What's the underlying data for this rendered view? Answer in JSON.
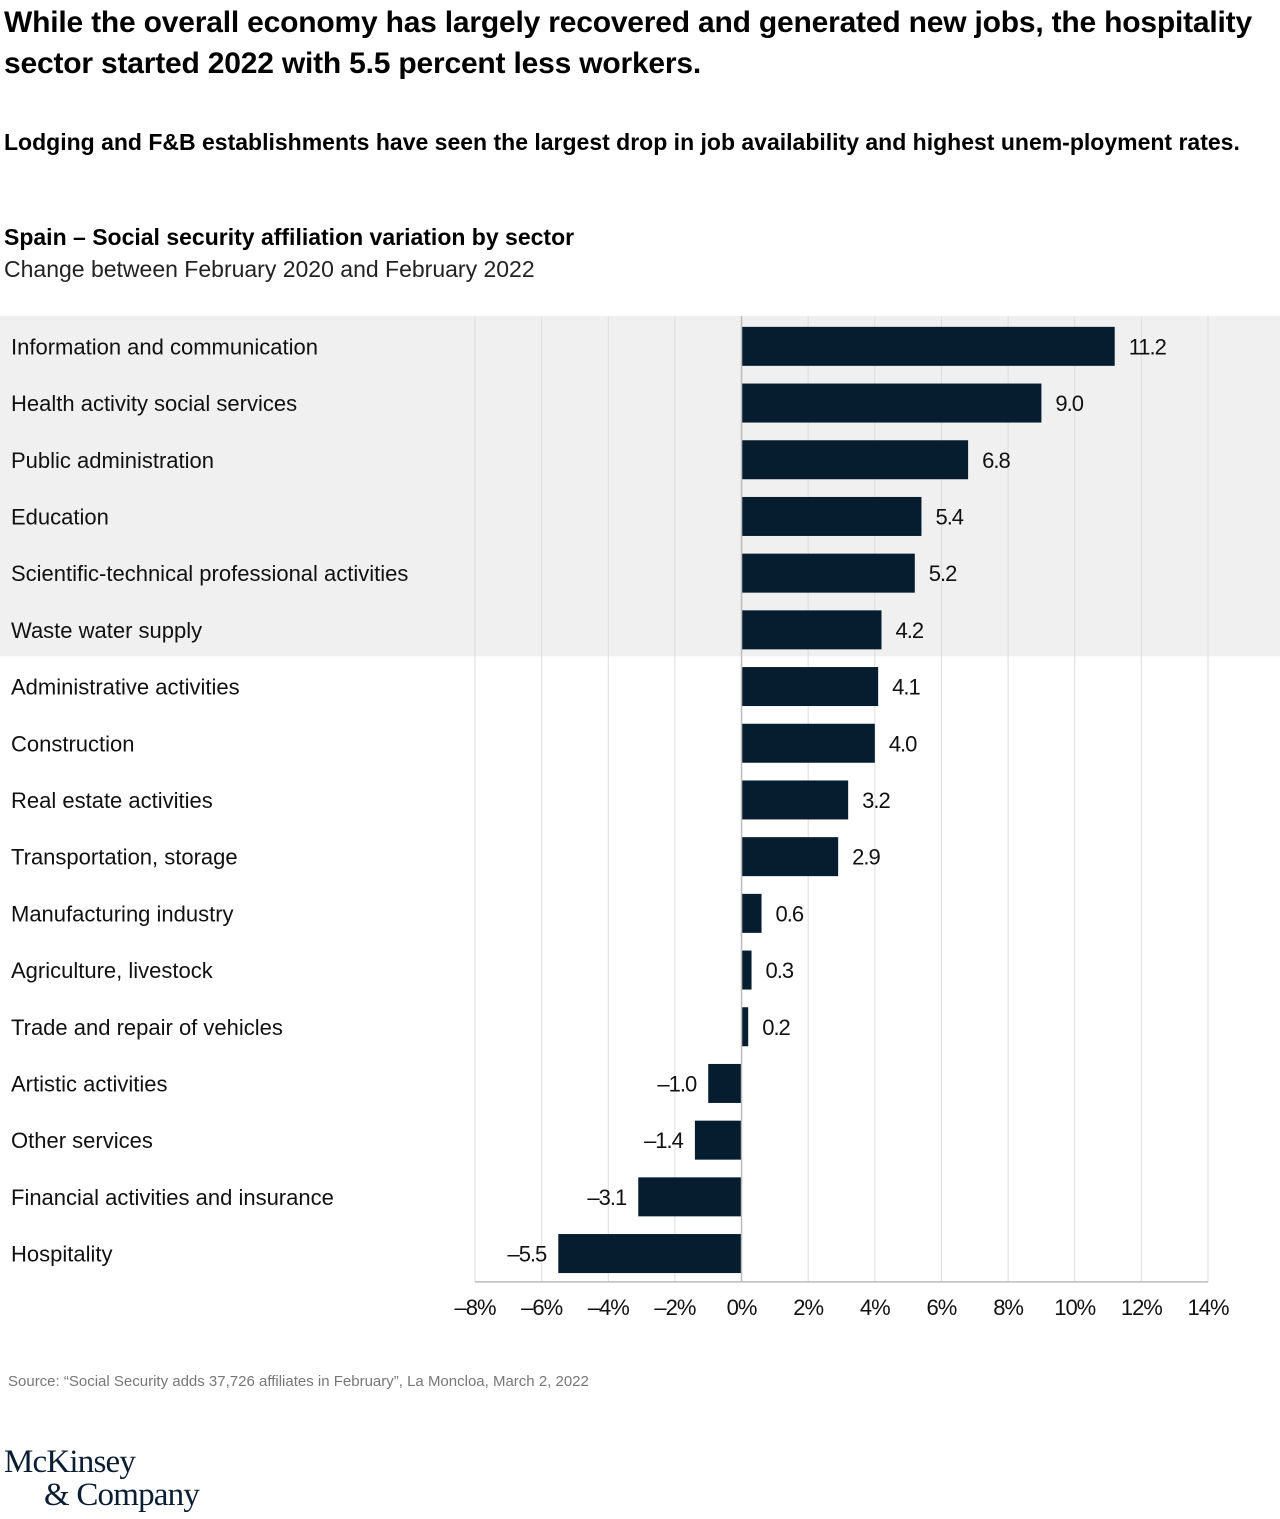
{
  "headline": "While the overall economy has largely recovered and generated new jobs, the hospitality sector started 2022 with 5.5 percent less workers.",
  "subheadline": "Lodging and F&B establishments have seen the largest drop in job availability and highest unem-ployment rates.",
  "source": "Source: “Social Security adds 37,726 affiliates in February”, La Moncloa, March 2, 2022",
  "logo": {
    "line1": "McKinsey",
    "line2": "& Company"
  },
  "colors": {
    "bar": "#061d30",
    "highlight_band": "#f0f0f0",
    "grid": "#dddddd",
    "axis": "#bbbbbb"
  },
  "chart_data": {
    "type": "bar",
    "orientation": "horizontal",
    "title": "Spain – Social security affiliation variation by sector",
    "subtitle": "Change between February 2020 and February 2022",
    "xlabel": "",
    "ylabel": "",
    "xlim": [
      -8,
      14
    ],
    "x_ticks": [
      -8,
      -6,
      -4,
      -2,
      0,
      2,
      4,
      6,
      8,
      10,
      12,
      14
    ],
    "x_tick_labels": [
      "–8%",
      "–6%",
      "–4%",
      "–2%",
      "0%",
      "2%",
      "4%",
      "6%",
      "8%",
      "10%",
      "12%",
      "14%"
    ],
    "grid": true,
    "highlighted_categories_count": 6,
    "categories": [
      "Information and communication",
      "Health activity social services",
      "Public administration",
      "Education",
      "Scientific-technical professional activities",
      "Waste water supply",
      "Administrative activities",
      "Construction",
      "Real estate activities",
      "Transportation, storage",
      "Manufacturing industry",
      "Agriculture, livestock",
      "Trade and repair of vehicles",
      "Artistic activities",
      "Other services",
      "Financial activities and insurance",
      "Hospitality"
    ],
    "values": [
      11.2,
      9.0,
      6.8,
      5.4,
      5.2,
      4.2,
      4.1,
      4.0,
      3.2,
      2.9,
      0.6,
      0.3,
      0.2,
      -1.0,
      -1.4,
      -3.1,
      -5.5
    ],
    "value_labels": [
      "11.2",
      "9.0",
      "6.8",
      "5.4",
      "5.2",
      "4.2",
      "4.1",
      "4.0",
      "3.2",
      "2.9",
      "0.6",
      "0.3",
      "0.2",
      "–1.0",
      "–1.4",
      "–3.1",
      "–5.5"
    ]
  }
}
